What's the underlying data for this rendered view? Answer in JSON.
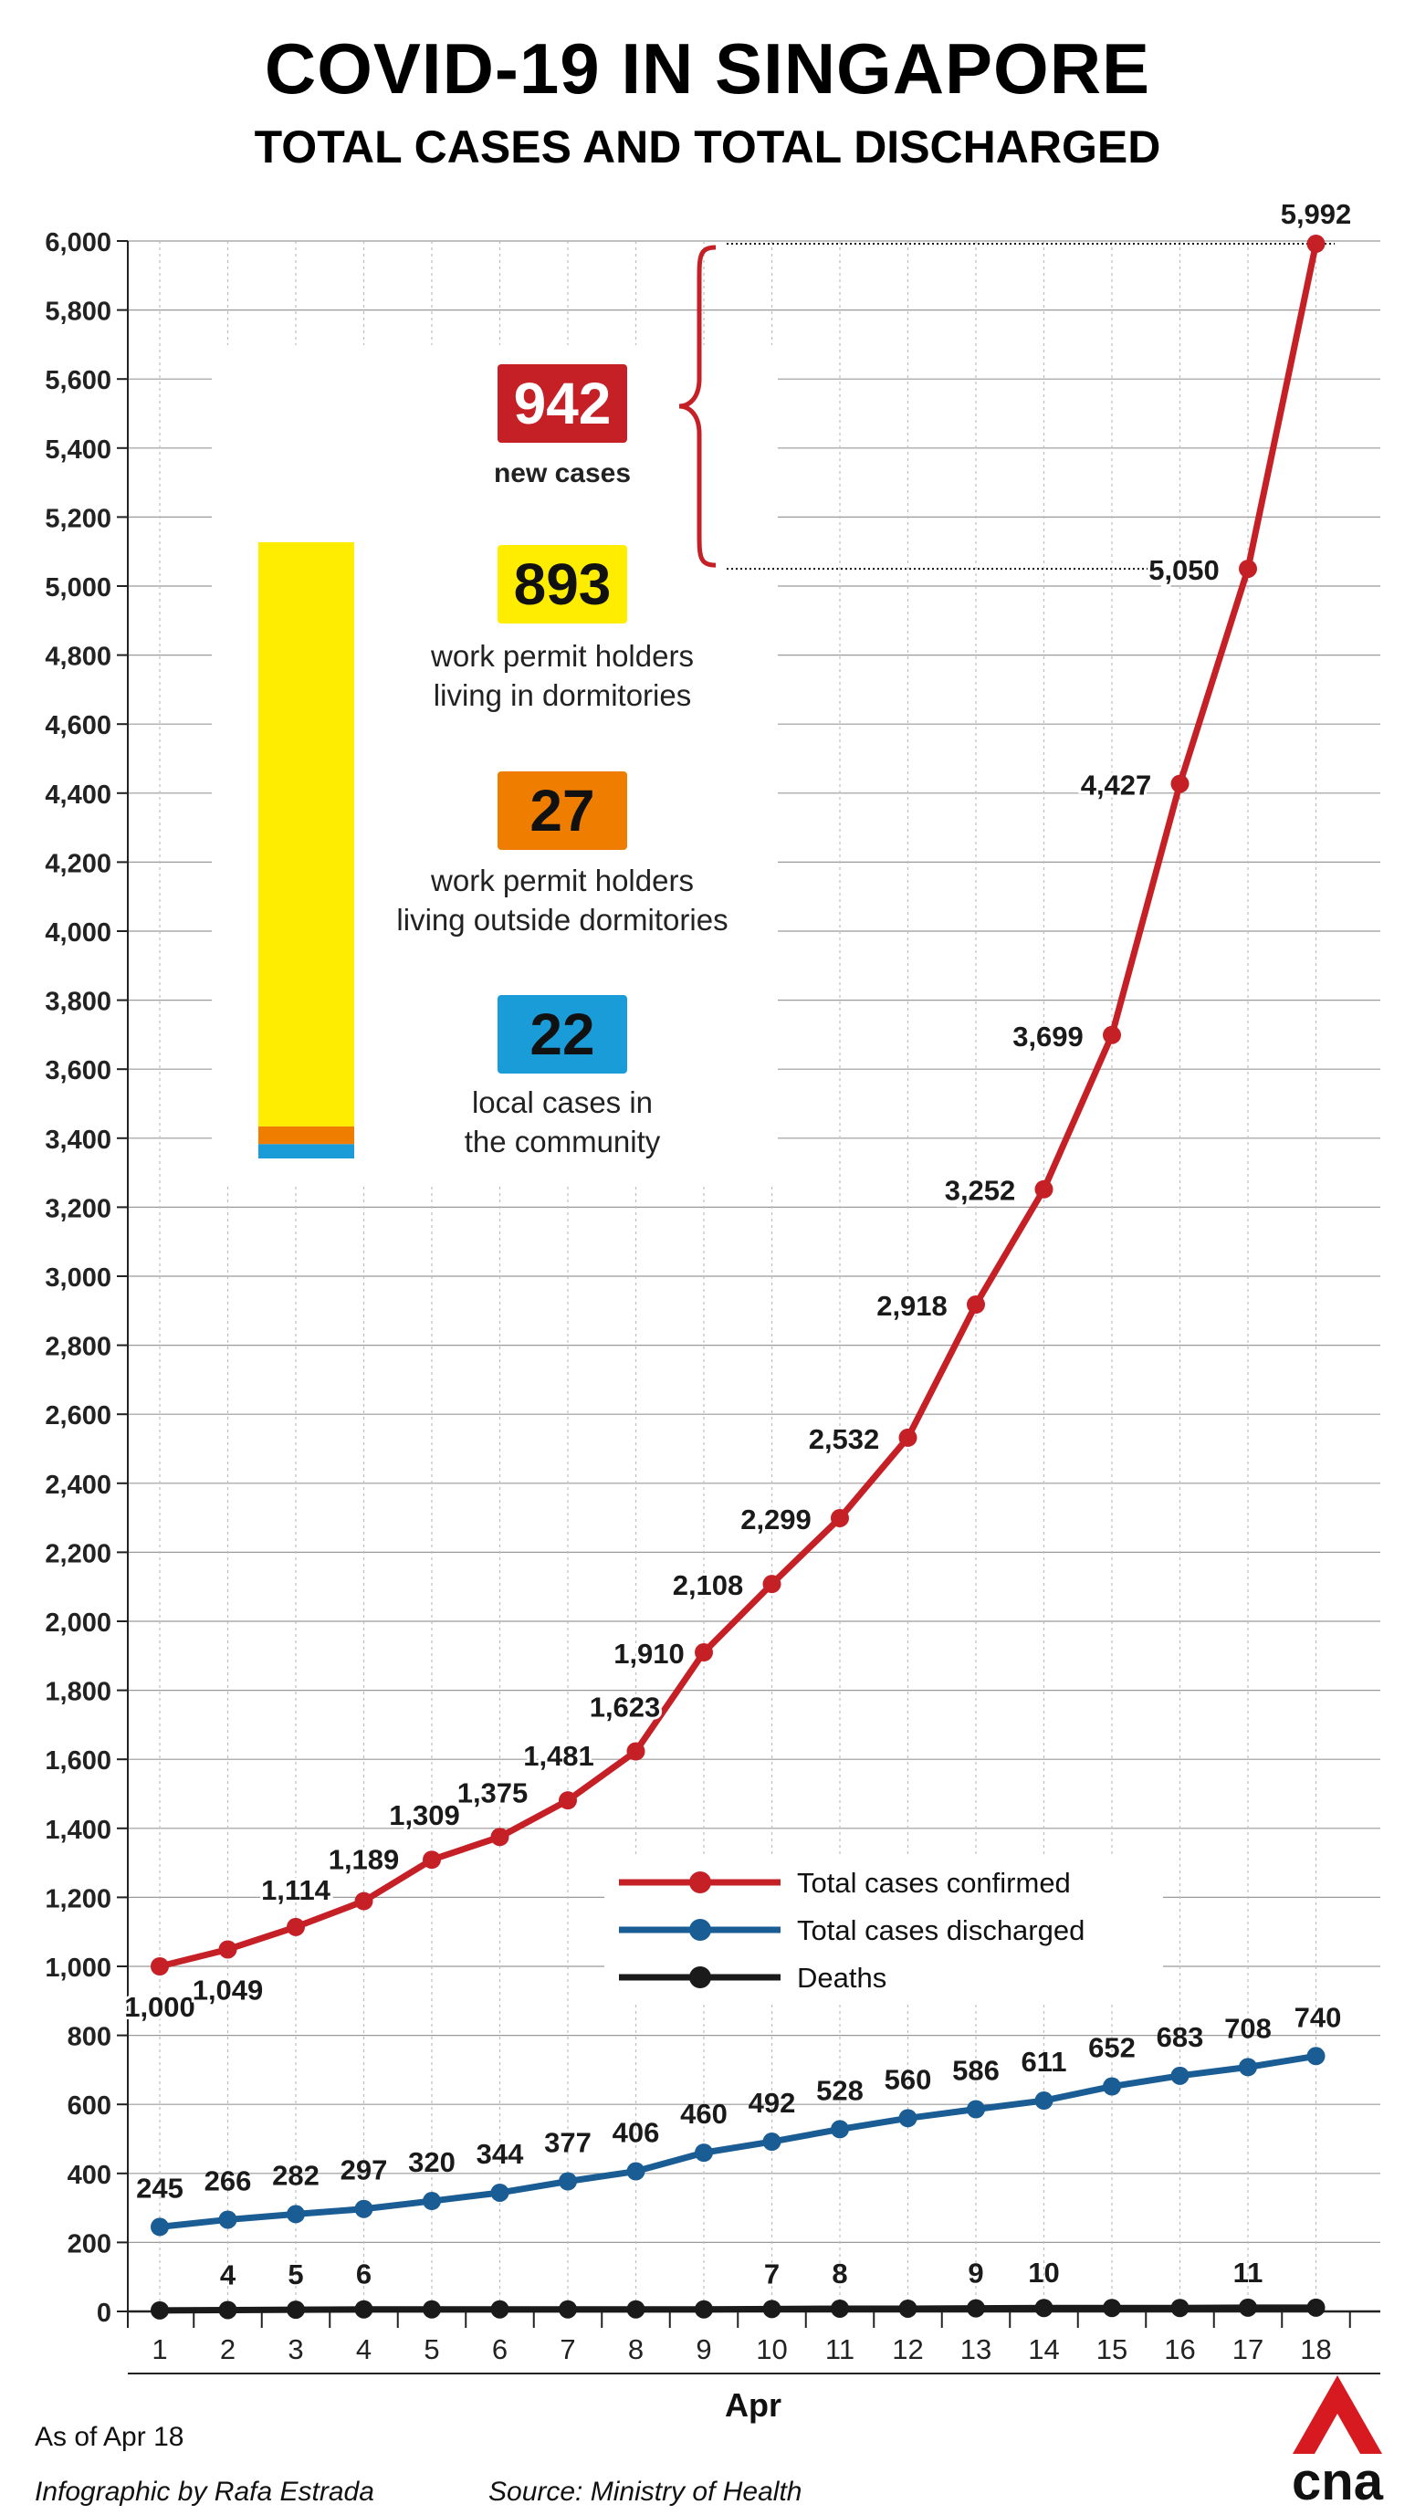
{
  "header": {
    "title": "COVID-19 IN SINGAPORE",
    "subtitle": "TOTAL CASES AND TOTAL DISCHARGED"
  },
  "breakdown": {
    "new_cases": {
      "value": "942",
      "label": "new cases",
      "color": "#c62027"
    },
    "segments": [
      {
        "value": "893",
        "lines": [
          "work permit holders",
          "living in dormitories"
        ],
        "color": "#ffed00",
        "count": 893
      },
      {
        "value": "27",
        "lines": [
          "work permit holders",
          "living outside dormitories"
        ],
        "color": "#ef7d00",
        "count": 27
      },
      {
        "value": "22",
        "lines": [
          "local cases in",
          "the community"
        ],
        "color": "#1a9cd8",
        "count": 22
      }
    ]
  },
  "chart_data": {
    "type": "line",
    "xlabel": "Apr",
    "ylabel": "",
    "x": [
      "1",
      "2",
      "3",
      "4",
      "5",
      "6",
      "7",
      "8",
      "9",
      "10",
      "11",
      "12",
      "13",
      "14",
      "15",
      "16",
      "17",
      "18"
    ],
    "ylim": [
      0,
      6000
    ],
    "yticks": [
      "0",
      "200",
      "400",
      "600",
      "800",
      "1,000",
      "1,200",
      "1,400",
      "1,600",
      "1,800",
      "2,000",
      "2,200",
      "2,400",
      "2,600",
      "2,800",
      "3,000",
      "3,200",
      "3,400",
      "3,600",
      "3,800",
      "4,000",
      "4,200",
      "4,400",
      "4,600",
      "4,800",
      "5,000",
      "5,200",
      "5,400",
      "5,600",
      "5,800",
      "6,000"
    ],
    "grid": true,
    "legend_position": "center-right",
    "series": [
      {
        "name": "Total cases confirmed",
        "color": "#c62027",
        "values": [
          1000,
          1049,
          1114,
          1189,
          1309,
          1375,
          1481,
          1623,
          1910,
          2108,
          2299,
          2532,
          2918,
          3252,
          3699,
          4427,
          5050,
          5992
        ],
        "labels": [
          "1,000",
          "1,049",
          "1,114",
          "1,189",
          "1,309",
          "1,375",
          "1,481",
          "1,623",
          "1,910",
          "2,108",
          "2,299",
          "2,532",
          "2,918",
          "3,252",
          "3,699",
          "4,427",
          "5,050",
          "5,992"
        ]
      },
      {
        "name": "Total cases discharged",
        "color": "#1a5c94",
        "values": [
          245,
          266,
          282,
          297,
          320,
          344,
          377,
          406,
          460,
          492,
          528,
          560,
          586,
          611,
          652,
          683,
          708,
          740
        ],
        "labels": [
          "245",
          "266",
          "282",
          "297",
          "320",
          "344",
          "377",
          "406",
          "460",
          "492",
          "528",
          "560",
          "586",
          "611",
          "652",
          "683",
          "708",
          "740"
        ]
      },
      {
        "name": "Deaths",
        "color": "#1a1a1a",
        "values": [
          3,
          4,
          5,
          6,
          6,
          6,
          6,
          6,
          6,
          7,
          8,
          8,
          9,
          10,
          10,
          10,
          11,
          11
        ],
        "labels": [
          "",
          "4",
          "5",
          "6",
          "",
          "",
          "",
          "",
          "",
          "7",
          "8",
          "",
          "9",
          "10",
          "",
          "",
          "11",
          ""
        ]
      }
    ]
  },
  "footer": {
    "as_of": "As of Apr 18",
    "credit": "Infographic by Rafa Estrada",
    "source": "Source: Ministry of Health"
  },
  "logo": {
    "text": "cna",
    "color": "#d71920"
  }
}
